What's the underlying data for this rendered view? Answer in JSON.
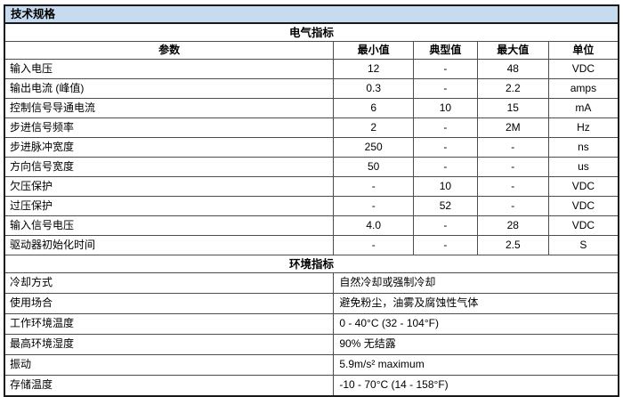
{
  "title": "技术规格",
  "colors": {
    "title_bar_bg": "#C6DBF0",
    "border": "#4d4d4d",
    "outer_border": "#1a1a1a"
  },
  "table": {
    "electrical": {
      "section_title": "电气指标",
      "headers": [
        "参数",
        "最小值",
        "典型值",
        "最大值",
        "单位"
      ],
      "rows": [
        [
          "输入电压",
          "12",
          "-",
          "48",
          "VDC"
        ],
        [
          "输出电流 (峰值)",
          "0.3",
          "-",
          "2.2",
          "amps"
        ],
        [
          "控制信号导通电流",
          "6",
          "10",
          "15",
          "mA"
        ],
        [
          "步进信号频率",
          "2",
          "-",
          "2M",
          "Hz"
        ],
        [
          "步进脉冲宽度",
          "250",
          "-",
          "-",
          "ns"
        ],
        [
          "方向信号宽度",
          "50",
          "-",
          "-",
          "us"
        ],
        [
          "欠压保护",
          "-",
          "10",
          "-",
          "VDC"
        ],
        [
          "过压保护",
          "-",
          "52",
          "-",
          "VDC"
        ],
        [
          "输入信号电压",
          "4.0",
          "-",
          "28",
          "VDC"
        ],
        [
          "驱动器初始化时间",
          "-",
          "-",
          "2.5",
          "S"
        ]
      ]
    },
    "environmental": {
      "section_title": "环境指标",
      "rows": [
        [
          "冷却方式",
          "自然冷却或强制冷却"
        ],
        [
          "使用场合",
          "避免粉尘，油雾及腐蚀性气体"
        ],
        [
          "工作环境温度",
          "0 - 40°C (32 - 104°F)"
        ],
        [
          "最高环境湿度",
          "90% 无结露"
        ],
        [
          "振动",
          "5.9m/s² maximum"
        ],
        [
          "存储温度",
          "-10 - 70°C (14 - 158°F)"
        ]
      ]
    }
  }
}
